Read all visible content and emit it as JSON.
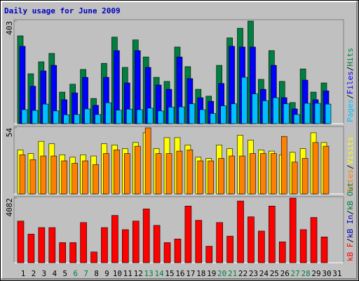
{
  "legend_separator": "/",
  "chart_data": [
    {
      "type": "bar",
      "title": "Daily usage for June 2009",
      "ylim": [
        0,
        403
      ],
      "yticks": [
        403
      ],
      "series": [
        {
          "name": "Pages",
          "color": "#00c0ff",
          "values": [
            55,
            52,
            77,
            50,
            35,
            36,
            58,
            36,
            82,
            53,
            57,
            55,
            61,
            50,
            65,
            66,
            78,
            55,
            40,
            70,
            78,
            182,
            117,
            90,
            102,
            78,
            36,
            80,
            80,
            77,
            null
          ]
        },
        {
          "name": "Files",
          "color": "#0000ff",
          "values": [
            304,
            147,
            207,
            229,
            94,
            121,
            182,
            72,
            182,
            287,
            160,
            287,
            221,
            152,
            135,
            262,
            177,
            102,
            88,
            158,
            304,
            301,
            301,
            135,
            229,
            102,
            58,
            171,
            94,
            129,
            null
          ]
        },
        {
          "name": "Hits",
          "color": "#008040",
          "values": [
            345,
            196,
            243,
            276,
            124,
            155,
            213,
            99,
            237,
            340,
            221,
            329,
            262,
            182,
            166,
            301,
            224,
            135,
            108,
            229,
            337,
            375,
            403,
            174,
            287,
            166,
            83,
            215,
            124,
            160,
            null
          ]
        }
      ]
    },
    {
      "type": "bar",
      "ylim": [
        0,
        54
      ],
      "yticks": [
        54
      ],
      "series": [
        {
          "name": "Sites",
          "color": "#ff8000",
          "values": [
            32,
            28,
            31,
            31,
            27,
            25,
            27,
            24,
            33,
            36,
            33,
            39,
            54,
            33,
            33,
            35,
            36,
            27,
            27,
            29,
            31,
            31,
            33,
            33,
            33,
            47,
            26,
            29,
            42,
            39,
            null
          ]
        },
        {
          "name": "Visits",
          "color": "#ffff00",
          "values": [
            36,
            33,
            43,
            41,
            32,
            30,
            32,
            31,
            41,
            40,
            37,
            42,
            50,
            37,
            46,
            46,
            40,
            30,
            29,
            40,
            37,
            48,
            44,
            36,
            35,
            32,
            34,
            37,
            50,
            42,
            null
          ]
        }
      ]
    },
    {
      "type": "bar",
      "ylim": [
        0,
        4082
      ],
      "yticks": [
        4082
      ],
      "categories": [
        "1",
        "2",
        "3",
        "4",
        "5",
        "6",
        "7",
        "8",
        "9",
        "10",
        "11",
        "12",
        "13",
        "14",
        "15",
        "16",
        "17",
        "18",
        "19",
        "20",
        "21",
        "22",
        "23",
        "24",
        "25",
        "26",
        "27",
        "28",
        "29",
        "30",
        "31"
      ],
      "category_colors": [
        "#000000",
        "#000000",
        "#000000",
        "#000000",
        "#000000",
        "#008040",
        "#008040",
        "#000000",
        "#000000",
        "#000000",
        "#000000",
        "#000000",
        "#008040",
        "#008040",
        "#000000",
        "#000000",
        "#000000",
        "#000000",
        "#000000",
        "#008040",
        "#008040",
        "#000000",
        "#000000",
        "#000000",
        "#000000",
        "#000000",
        "#008040",
        "#008040",
        "#000000",
        "#000000",
        "#000000"
      ],
      "series": [
        {
          "name": "kB F",
          "color": "#ff0000",
          "values": [
            2630,
            1810,
            2220,
            2220,
            1270,
            1270,
            2540,
            680,
            2220,
            2990,
            2090,
            2630,
            3400,
            2360,
            1270,
            1500,
            3580,
            2680,
            1040,
            2540,
            1680,
            3900,
            2900,
            2000,
            3580,
            1320,
            4082,
            2090,
            2860,
            1630,
            null
          ]
        },
        {
          "name": "kB In",
          "color": "#0000c0",
          "values": [
            0,
            0,
            0,
            0,
            0,
            0,
            0,
            0,
            0,
            0,
            0,
            0,
            0,
            0,
            0,
            0,
            0,
            0,
            0,
            0,
            0,
            0,
            0,
            0,
            0,
            0,
            0,
            0,
            0,
            0,
            null
          ]
        },
        {
          "name": "kB Out",
          "color": "#008040",
          "values": [
            0,
            0,
            0,
            0,
            0,
            0,
            0,
            0,
            0,
            0,
            0,
            0,
            0,
            0,
            0,
            0,
            0,
            0,
            0,
            0,
            0,
            0,
            0,
            0,
            0,
            0,
            0,
            0,
            0,
            0,
            null
          ]
        }
      ]
    }
  ]
}
